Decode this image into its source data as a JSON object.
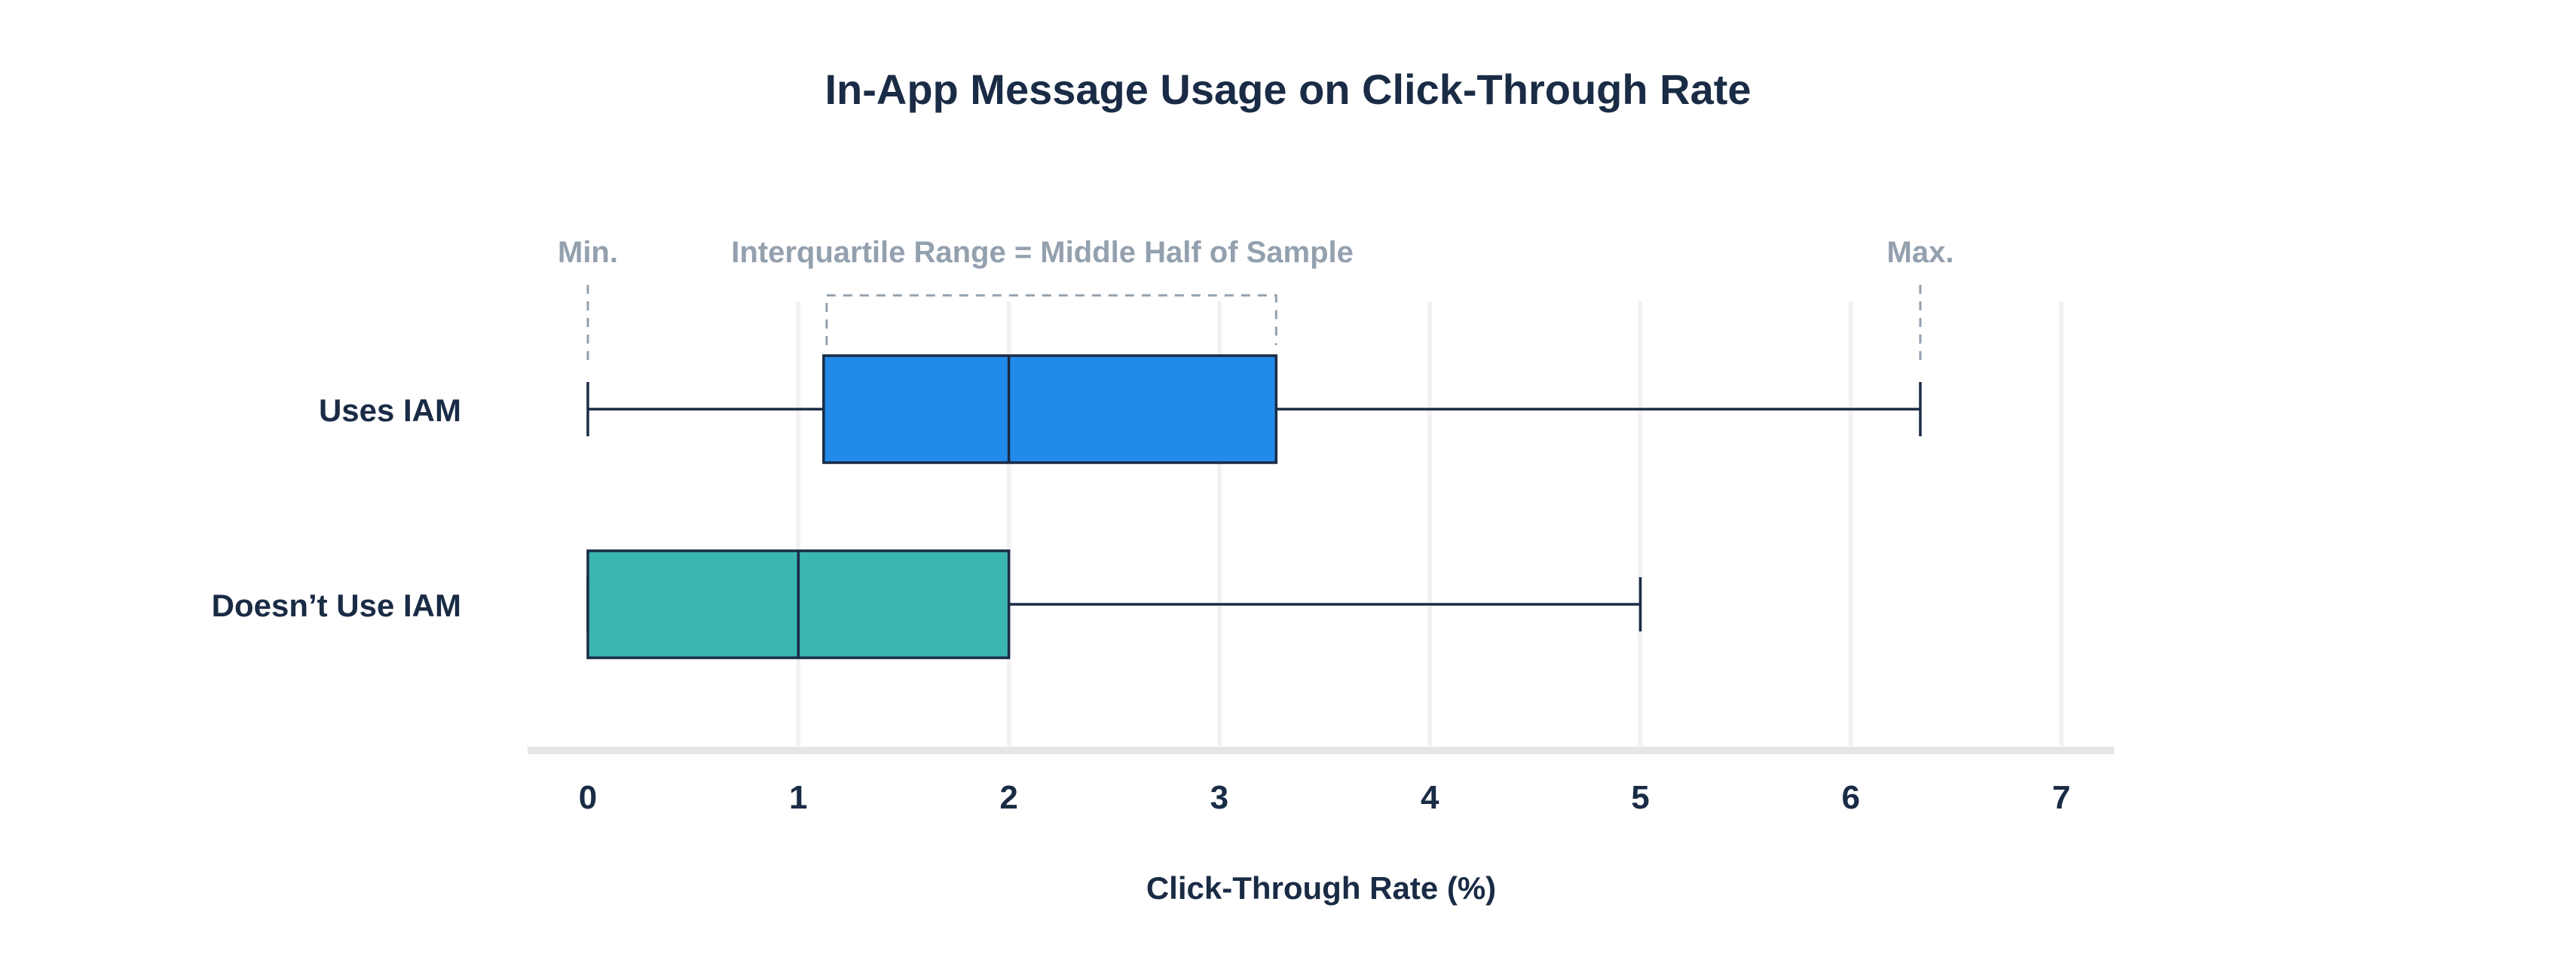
{
  "chart_data": {
    "type": "boxplot",
    "title": "In-App Message Usage on Click-Through Rate",
    "xlabel": "Click-Through Rate (%)",
    "ylabel": "",
    "xlim": [
      0,
      7
    ],
    "x_ticks": [
      "0",
      "1",
      "2",
      "3",
      "4",
      "5",
      "6",
      "7"
    ],
    "grid": "vertical",
    "categories": [
      {
        "label": "Uses IAM",
        "min": 0,
        "q1": 1.12,
        "median": 2,
        "q3": 3.27,
        "max": 6.33,
        "color": "#228be9"
      },
      {
        "label": "Doesn’t Use IAM",
        "min": 0,
        "q1": 0,
        "median": 1,
        "q3": 2,
        "max": 5,
        "color": "#3bb5b2"
      }
    ],
    "annotations": {
      "min": "Min.",
      "iqr": "Interquartile Range = Middle Half of Sample",
      "max": "Max."
    }
  }
}
